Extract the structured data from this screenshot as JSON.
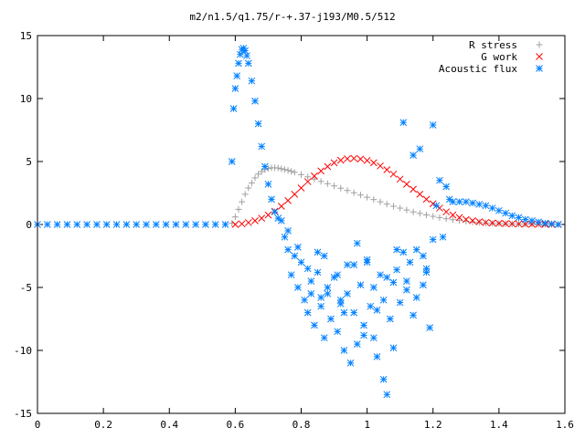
{
  "chart_data": {
    "type": "scatter",
    "title": "m2/n1.5/q1.75/r-+.37-j193/M0.5/512",
    "xlabel": "",
    "ylabel": "",
    "xlim": [
      0,
      1.6
    ],
    "ylim": [
      -15,
      15
    ],
    "xticks": [
      0,
      0.2,
      0.4,
      0.6,
      0.8,
      1,
      1.2,
      1.4,
      1.6
    ],
    "xtick_labels": [
      "0",
      "0.2",
      "0.4",
      "0.6",
      "0.8",
      "1",
      "1.2",
      "1.4",
      "1.6"
    ],
    "yticks": [
      -15,
      -10,
      -5,
      0,
      5,
      10,
      15
    ],
    "ytick_labels": [
      "-15",
      "-10",
      "-5",
      "0",
      "5",
      "10",
      "15"
    ],
    "grid": false,
    "legend_position": "top-right",
    "series": [
      {
        "name": "R stress",
        "marker": "plus",
        "color": "#a0a0a0",
        "x": [
          0.59,
          0.6,
          0.61,
          0.62,
          0.63,
          0.64,
          0.65,
          0.66,
          0.67,
          0.68,
          0.69,
          0.7,
          0.71,
          0.72,
          0.73,
          0.74,
          0.75,
          0.76,
          0.77,
          0.78,
          0.8,
          0.82,
          0.84,
          0.86,
          0.88,
          0.9,
          0.92,
          0.94,
          0.96,
          0.98,
          1.0,
          1.02,
          1.04,
          1.06,
          1.08,
          1.1,
          1.12,
          1.14,
          1.16,
          1.18,
          1.2,
          1.22,
          1.24,
          1.26,
          1.28,
          1.3,
          1.32,
          1.34,
          1.36,
          1.38,
          1.4,
          1.42,
          1.44,
          1.46,
          1.48,
          1.5,
          1.52,
          1.54,
          1.56,
          1.58
        ],
        "y": [
          0.1,
          0.6,
          1.2,
          1.8,
          2.4,
          2.9,
          3.3,
          3.7,
          4.0,
          4.2,
          4.35,
          4.45,
          4.5,
          4.5,
          4.48,
          4.42,
          4.36,
          4.3,
          4.22,
          4.14,
          3.96,
          3.78,
          3.6,
          3.42,
          3.24,
          3.06,
          2.88,
          2.7,
          2.52,
          2.34,
          2.16,
          1.98,
          1.8,
          1.62,
          1.45,
          1.3,
          1.15,
          1.0,
          0.88,
          0.76,
          0.65,
          0.55,
          0.46,
          0.38,
          0.31,
          0.25,
          0.2,
          0.16,
          0.12,
          0.09,
          0.07,
          0.05,
          0.04,
          0.03,
          0.02,
          0.015,
          0.01,
          0.01,
          0.005,
          0.0
        ]
      },
      {
        "name": "G work",
        "marker": "cross",
        "color": "#ff0000",
        "x": [
          0.6,
          0.62,
          0.64,
          0.66,
          0.68,
          0.7,
          0.72,
          0.74,
          0.76,
          0.78,
          0.8,
          0.82,
          0.84,
          0.86,
          0.88,
          0.9,
          0.92,
          0.94,
          0.96,
          0.98,
          1.0,
          1.02,
          1.04,
          1.06,
          1.08,
          1.1,
          1.12,
          1.14,
          1.16,
          1.18,
          1.2,
          1.22,
          1.24,
          1.26,
          1.28,
          1.3,
          1.32,
          1.34,
          1.36,
          1.38,
          1.4,
          1.42,
          1.44,
          1.46,
          1.48,
          1.5,
          1.52,
          1.54,
          1.56,
          1.58
        ],
        "y": [
          0.0,
          0.05,
          0.15,
          0.3,
          0.5,
          0.75,
          1.05,
          1.45,
          1.9,
          2.4,
          2.9,
          3.4,
          3.85,
          4.25,
          4.6,
          4.9,
          5.1,
          5.22,
          5.25,
          5.2,
          5.08,
          4.9,
          4.65,
          4.35,
          4.0,
          3.6,
          3.2,
          2.8,
          2.4,
          2.0,
          1.65,
          1.3,
          1.0,
          0.75,
          0.55,
          0.4,
          0.3,
          0.22,
          0.16,
          0.12,
          0.09,
          0.07,
          0.05,
          0.04,
          0.03,
          0.02,
          0.015,
          0.01,
          0.005,
          0.0
        ]
      },
      {
        "name": "Acoustic flux",
        "marker": "asterisk",
        "color": "#0080ff",
        "x": [
          0.0,
          0.03,
          0.06,
          0.09,
          0.12,
          0.15,
          0.18,
          0.21,
          0.24,
          0.27,
          0.3,
          0.33,
          0.36,
          0.39,
          0.42,
          0.45,
          0.48,
          0.51,
          0.54,
          0.57,
          0.59,
          0.595,
          0.6,
          0.605,
          0.61,
          0.615,
          0.62,
          0.625,
          0.63,
          0.635,
          0.64,
          0.65,
          0.66,
          0.67,
          0.68,
          0.69,
          0.7,
          0.71,
          0.72,
          0.73,
          0.74,
          0.75,
          0.76,
          0.77,
          0.78,
          0.79,
          0.8,
          0.81,
          0.82,
          0.83,
          0.84,
          0.85,
          0.86,
          0.87,
          0.88,
          0.89,
          0.9,
          0.91,
          0.92,
          0.93,
          0.94,
          0.95,
          0.96,
          0.97,
          0.98,
          0.99,
          1.0,
          1.01,
          1.02,
          1.03,
          1.04,
          1.05,
          1.06,
          1.07,
          1.08,
          1.09,
          1.1,
          1.11,
          1.12,
          1.13,
          1.14,
          1.15,
          1.16,
          1.17,
          1.18,
          1.19,
          1.2,
          1.21,
          1.22,
          1.23,
          1.24,
          1.25,
          1.26,
          1.28,
          1.3,
          1.32,
          1.34,
          1.36,
          1.38,
          1.4,
          1.42,
          1.44,
          1.46,
          1.48,
          1.5,
          1.52,
          1.54,
          1.56,
          1.58,
          0.76,
          0.79,
          0.82,
          0.85,
          0.88,
          0.91,
          0.94,
          0.97,
          1.0,
          1.03,
          1.06,
          1.09,
          1.12,
          1.15,
          1.18,
          0.83,
          0.87,
          0.93,
          0.99,
          1.05,
          1.11,
          1.17,
          0.86,
          0.92,
          0.96,
          1.02,
          1.08,
          1.14,
          1.2
        ],
        "y": [
          0,
          0,
          0,
          0,
          0,
          0,
          0,
          0,
          0,
          0,
          0,
          0,
          0,
          0,
          0,
          0,
          0,
          0,
          0,
          0,
          5.0,
          9.2,
          10.8,
          11.8,
          12.8,
          13.5,
          13.9,
          14.0,
          13.8,
          13.4,
          12.8,
          11.4,
          9.8,
          8.0,
          6.2,
          4.6,
          3.2,
          2.0,
          1.0,
          0.5,
          0.3,
          -1.0,
          -2.0,
          -4.0,
          -2.5,
          -5.0,
          -3.0,
          -6.0,
          -7.0,
          -4.5,
          -8.0,
          -3.8,
          -6.5,
          -9.0,
          -5.0,
          -7.5,
          -4.2,
          -8.5,
          -6.0,
          -10.0,
          -5.5,
          -11.0,
          -7.0,
          -9.5,
          -4.8,
          -8.0,
          -3.0,
          -6.5,
          -5.0,
          -10.5,
          -4.0,
          -12.3,
          -13.5,
          -7.5,
          -9.8,
          -2.0,
          -6.2,
          8.1,
          -4.5,
          -3.0,
          5.5,
          -5.8,
          6.0,
          -2.5,
          -3.8,
          -8.2,
          7.9,
          1.5,
          3.5,
          -1.0,
          3.0,
          2.0,
          1.8,
          1.8,
          1.8,
          1.7,
          1.6,
          1.5,
          1.3,
          1.1,
          0.9,
          0.7,
          0.55,
          0.4,
          0.3,
          0.2,
          0.1,
          0.05,
          0.0,
          -0.5,
          -1.8,
          -3.5,
          -2.2,
          -5.5,
          -4.0,
          -3.2,
          -1.5,
          -2.8,
          -6.8,
          -4.2,
          -3.6,
          -5.2,
          -2.0,
          -3.5,
          -5.5,
          -2.5,
          -7.0,
          -8.8,
          -6.0,
          -2.2,
          -4.8,
          -5.8,
          -6.3,
          -3.2,
          -9.0,
          -4.6,
          -7.2,
          -1.2
        ]
      }
    ]
  }
}
